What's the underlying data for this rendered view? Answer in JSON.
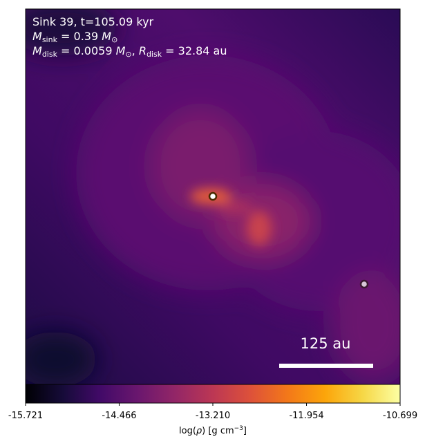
{
  "chart_data": {
    "type": "image",
    "title_lines": [
      [
        "Sink 39, t=105.09 kyr"
      ],
      [
        "M",
        "sink",
        " = 0.39 ",
        "M",
        "⊙"
      ],
      [
        "M",
        "disk",
        " = 0.0059 ",
        "M",
        "⊙",
        ", ",
        "R",
        "disk",
        " = 32.84 au"
      ]
    ],
    "scale_bar_label": "125 au",
    "colorbar": {
      "label_parts": [
        "log(",
        "ρ",
        ") [g cm",
        "−3",
        "]"
      ],
      "clim": [
        -15.721,
        -10.699
      ],
      "ticks": [
        -15.721,
        -14.466,
        {
          "value": -13.21,
          "label": "-13.210"
        },
        -11.954,
        -10.699
      ],
      "colormap": "inferno"
    }
  }
}
